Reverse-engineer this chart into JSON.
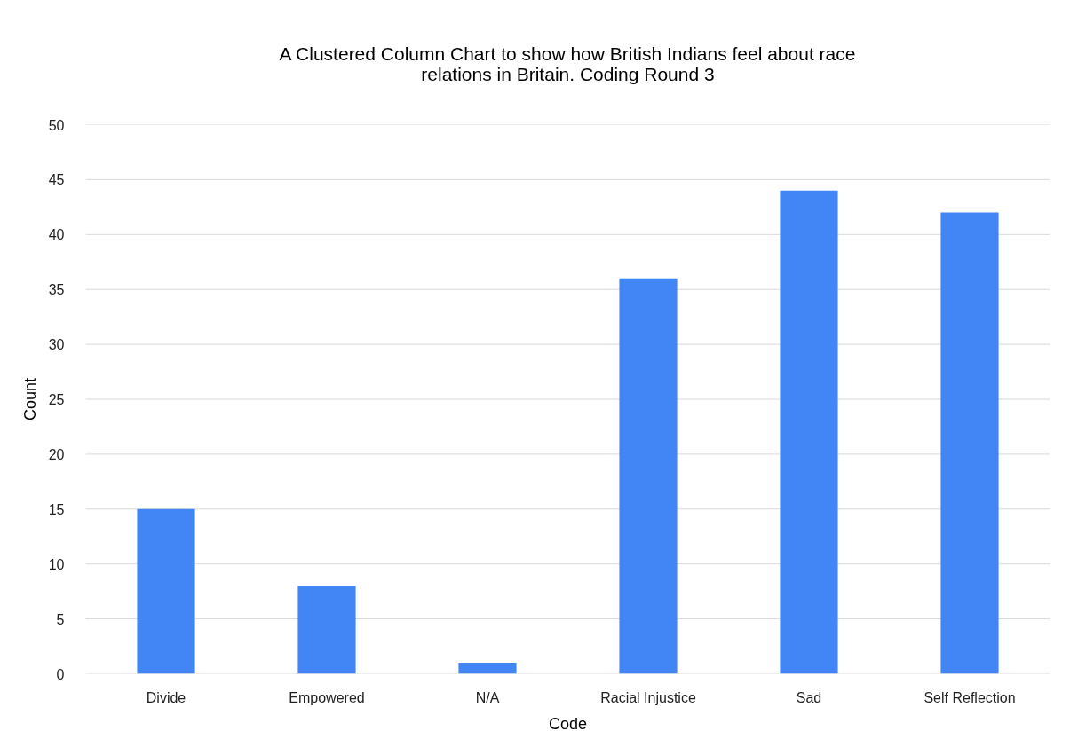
{
  "chart_data": {
    "type": "bar",
    "title": "A Clustered Column Chart to show how British Indians feel about race relations in Britain. Coding Round 3",
    "xlabel": "Code",
    "ylabel": "Count",
    "categories": [
      "Divide",
      "Empowered",
      "N/A",
      "Racial Injustice",
      "Sad",
      "Self Reflection"
    ],
    "values": [
      15,
      8,
      1,
      36,
      44,
      42
    ],
    "color": "#4285f4",
    "ylim": [
      0,
      50
    ],
    "yticks": [
      0,
      5,
      10,
      15,
      20,
      25,
      30,
      35,
      40,
      45,
      50
    ],
    "grid": "y"
  }
}
